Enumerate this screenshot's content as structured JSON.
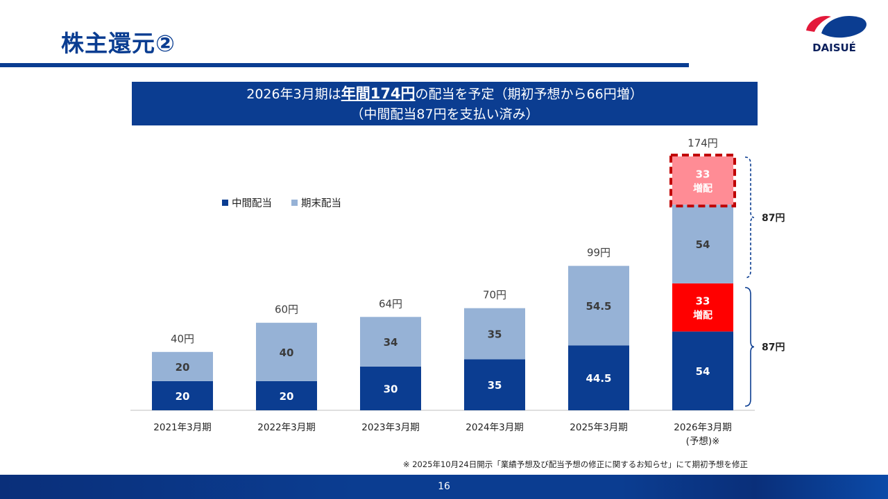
{
  "header": {
    "title": "株主還元②",
    "logo_text": "DAISUÉ"
  },
  "banner": {
    "line1_pre": "2026年3月期は",
    "line1_highlight": "年間174円",
    "line1_post": "の配当を予定（期初予想から66円増）",
    "line2": "（中間配当87円を支払い済み）"
  },
  "colors": {
    "interim": "#0b3d91",
    "yearend": "#96b2d6",
    "increase_solid": "#ff0000",
    "increase_light": "#ff8c95",
    "increase_border": "#c00000",
    "brand_red": "#e3193a"
  },
  "chart_data": {
    "type": "bar",
    "stacked": true,
    "categories": [
      "2021年3月期",
      "2022年3月期",
      "2023年3月期",
      "2024年3月期",
      "2025年3月期",
      "2026年3月期"
    ],
    "category_sublabels": [
      "",
      "",
      "",
      "",
      "",
      "(予想)※"
    ],
    "legend": [
      "中間配当",
      "期末配当"
    ],
    "legend_placement": "upper-left",
    "series": [
      {
        "name": "中間配当",
        "values": [
          20,
          20,
          30,
          35,
          44.5,
          54
        ],
        "labels": [
          "20",
          "20",
          "30",
          "35",
          "44.5",
          "54"
        ]
      },
      {
        "name": "中間増配",
        "values": [
          0,
          0,
          0,
          0,
          0,
          33
        ],
        "labels": [
          "",
          "",
          "",
          "",
          "",
          "33\n増配"
        ]
      },
      {
        "name": "期末配当",
        "values": [
          20,
          40,
          34,
          35,
          54.5,
          54
        ],
        "labels": [
          "20",
          "40",
          "34",
          "35",
          "54.5",
          "54"
        ]
      },
      {
        "name": "期末増配",
        "values": [
          0,
          0,
          0,
          0,
          0,
          33
        ],
        "labels": [
          "",
          "",
          "",
          "",
          "",
          "33\n増配"
        ]
      }
    ],
    "totals": [
      "40円",
      "60円",
      "64円",
      "70円",
      "99円",
      "174円"
    ],
    "brackets": [
      "87円",
      "87円"
    ],
    "ylim": [
      0,
      174
    ]
  },
  "footnote": "※ 2025年10月24日開示「業績予想及び配当予想の修正に関するお知らせ」にて期初予想を修正",
  "page_number": "16"
}
